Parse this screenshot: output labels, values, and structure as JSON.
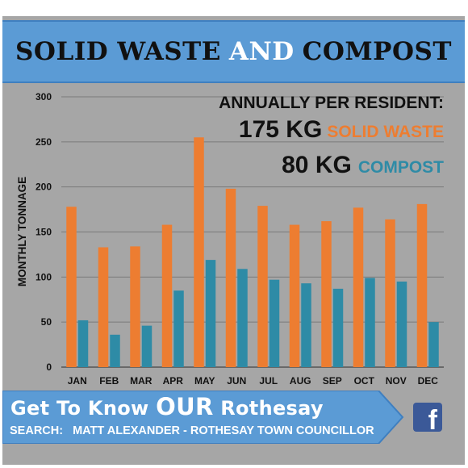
{
  "title": {
    "part1": "SOLID WASTE",
    "part2": "AND",
    "part3": "COMPOST"
  },
  "callout": {
    "heading": "ANNUALLY PER RESIDENT:",
    "solid_amount": "175 KG",
    "solid_label": "SOLID WASTE",
    "compost_amount": "80 KG",
    "compost_label": "COMPOST"
  },
  "banner": {
    "text_part1": "Get To Know ",
    "text_part2": "OUR",
    "text_part3": " Rothesay",
    "search_label": "SEARCH:",
    "search_value": "MATT ALEXANDER - ROTHESAY TOWN COUNCILLOR"
  },
  "icons": {
    "social": "facebook-icon"
  },
  "colors": {
    "solid_waste": "#ed7d31",
    "compost": "#2e8ba6",
    "title_bar": "#5b9bd5",
    "banner": "#5b9bd5",
    "panel": "#a6a6a6"
  },
  "chart_data": {
    "type": "bar",
    "ylabel": "MONTHLY TONNAGE",
    "xlabel": "",
    "ylim": [
      0,
      300
    ],
    "yticks": [
      0,
      50,
      100,
      150,
      200,
      250,
      300
    ],
    "categories": [
      "JAN",
      "FEB",
      "MAR",
      "APR",
      "MAY",
      "JUN",
      "JUL",
      "AUG",
      "SEP",
      "OCT",
      "NOV",
      "DEC"
    ],
    "series": [
      {
        "values": [
          178,
          133,
          134,
          158,
          255,
          198,
          179,
          158,
          162,
          177,
          164,
          181
        ]
      },
      {
        "values": [
          52,
          36,
          46,
          85,
          119,
          109,
          97,
          93,
          87,
          99,
          95,
          50
        ]
      }
    ],
    "grid": true,
    "legend": "none"
  }
}
